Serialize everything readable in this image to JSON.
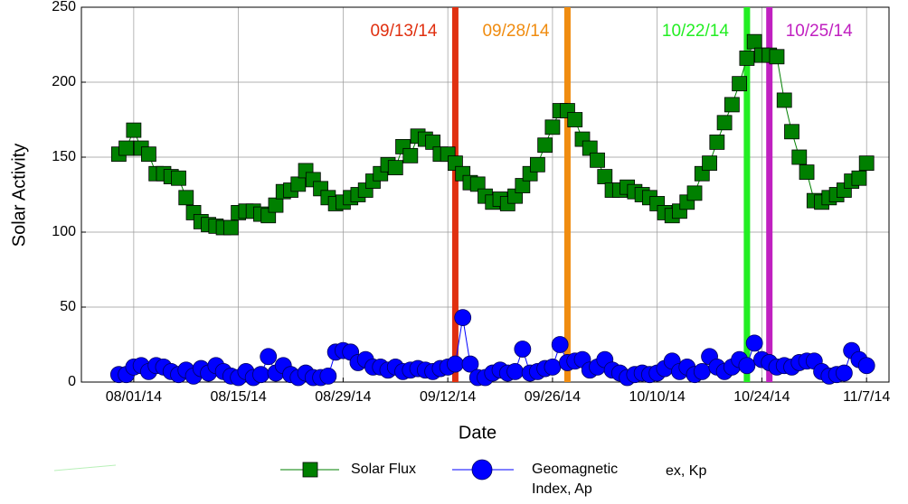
{
  "chart_data": {
    "type": "line",
    "xlabel": "Date",
    "ylabel": "Solar Activity",
    "xlim": [
      -7,
      101
    ],
    "ylim": [
      0,
      250
    ],
    "xticks": [
      {
        "value": 0,
        "label": "08/01/14"
      },
      {
        "value": 14,
        "label": "08/15/14"
      },
      {
        "value": 28,
        "label": "08/29/14"
      },
      {
        "value": 42,
        "label": "09/12/14"
      },
      {
        "value": 56,
        "label": "09/26/14"
      },
      {
        "value": 70,
        "label": "10/10/14"
      },
      {
        "value": 84,
        "label": "10/24/14"
      },
      {
        "value": 98,
        "label": "11/7/14"
      }
    ],
    "yticks": [
      0,
      50,
      100,
      150,
      200,
      250
    ],
    "grid": true,
    "x": [
      -2,
      -1,
      0,
      1,
      2,
      3,
      4,
      5,
      6,
      7,
      8,
      9,
      10,
      11,
      12,
      13,
      14,
      15,
      16,
      17,
      18,
      19,
      20,
      21,
      22,
      23,
      24,
      25,
      26,
      27,
      28,
      29,
      30,
      31,
      32,
      33,
      34,
      35,
      36,
      37,
      38,
      39,
      40,
      41,
      42,
      43,
      44,
      45,
      46,
      47,
      48,
      49,
      50,
      51,
      52,
      53,
      54,
      55,
      56,
      57,
      58,
      59,
      60,
      61,
      62,
      63,
      64,
      65,
      66,
      67,
      68,
      69,
      70,
      71,
      72,
      73,
      74,
      75,
      76,
      77,
      78,
      79,
      80,
      81,
      82,
      83,
      84,
      85,
      86,
      87,
      88,
      89,
      90,
      91,
      92,
      93,
      94,
      95,
      96,
      97,
      98
    ],
    "series": [
      {
        "name": "Solar Flux",
        "color": "#008000",
        "marker": "square",
        "values": [
          152,
          156,
          168,
          156,
          152,
          139,
          139,
          137,
          136,
          123,
          113,
          107,
          105,
          104,
          103,
          103,
          113,
          114,
          114,
          112,
          111,
          118,
          127,
          128,
          132,
          141,
          135,
          129,
          123,
          119,
          120,
          123,
          125,
          128,
          134,
          139,
          145,
          143,
          157,
          151,
          164,
          162,
          160,
          152,
          152,
          146,
          139,
          133,
          132,
          124,
          120,
          122,
          119,
          124,
          131,
          139,
          145,
          158,
          170,
          181,
          181,
          175,
          162,
          156,
          148,
          137,
          128,
          128,
          130,
          127,
          125,
          123,
          119,
          113,
          111,
          114,
          120,
          126,
          139,
          146,
          160,
          173,
          185,
          199,
          216,
          227,
          218,
          218,
          217,
          188,
          167,
          150,
          140,
          121,
          120,
          123,
          125,
          128,
          134,
          136,
          146
        ]
      },
      {
        "name": "Geomagnetic Index, Ap",
        "color": "#0000ff",
        "marker": "circle",
        "values": [
          5,
          5,
          10,
          11,
          7,
          11,
          10,
          7,
          5,
          8,
          4,
          9,
          6,
          11,
          7,
          4,
          3,
          7,
          3,
          5,
          17,
          6,
          11,
          5,
          3,
          6,
          3,
          3,
          4,
          20,
          21,
          20,
          13,
          15,
          10,
          10,
          8,
          10,
          7,
          8,
          9,
          8,
          7,
          9,
          10,
          12,
          43,
          12,
          3,
          3,
          6,
          8,
          6,
          7,
          22,
          6,
          7,
          9,
          10,
          25,
          13,
          14,
          15,
          8,
          10,
          15,
          8,
          6,
          3,
          5,
          6,
          5,
          6,
          9,
          14,
          7,
          10,
          5,
          7,
          17,
          10,
          7,
          10,
          15,
          11,
          26,
          15,
          13,
          10,
          11,
          10,
          13,
          14,
          14,
          7,
          4,
          5,
          6,
          21,
          15,
          11
        ]
      }
    ],
    "events": [
      {
        "label": "09/13/14",
        "x": 43,
        "color": "#e03010"
      },
      {
        "label": "09/28/14",
        "x": 58,
        "color": "#f08c10"
      },
      {
        "label": "10/22/14",
        "x": 82,
        "color": "#22ee22"
      },
      {
        "label": "10/25/14",
        "x": 85,
        "color": "#c020c0"
      }
    ],
    "legend_fragment": "ex, Kp"
  }
}
